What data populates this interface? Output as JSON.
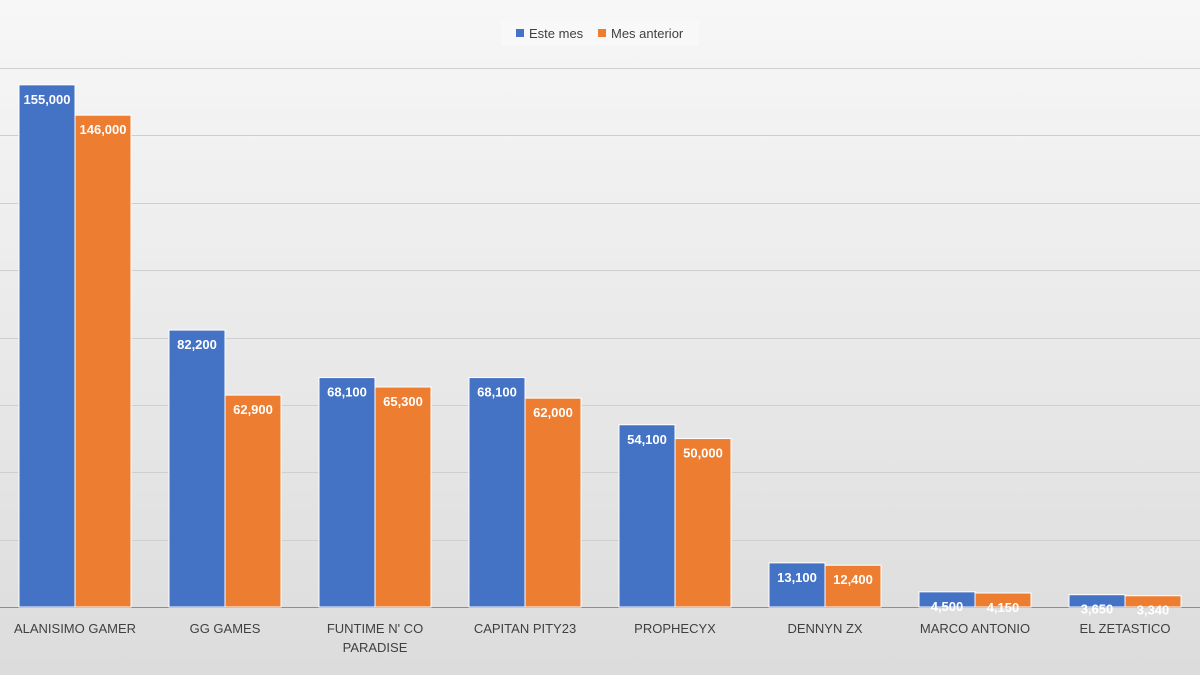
{
  "chart_data": {
    "type": "bar",
    "categories": [
      "ALANISIMO GAMER",
      "GG GAMES",
      "FUNTIME N' CO PARADISE",
      "CAPITAN PITY23",
      "PROPHECYX",
      "DENNYN ZX",
      "MARCO ANTONIO",
      "EL ZETASTICO"
    ],
    "category_lines": [
      [
        "ALANISIMO GAMER"
      ],
      [
        "GG GAMES"
      ],
      [
        "FUNTIME N' CO",
        "PARADISE"
      ],
      [
        "CAPITAN PITY23"
      ],
      [
        "PROPHECYX"
      ],
      [
        "DENNYN ZX"
      ],
      [
        "MARCO ANTONIO"
      ],
      [
        "EL ZETASTICO"
      ]
    ],
    "series": [
      {
        "name": "Este mes",
        "color": "#4472C4",
        "values": [
          155000,
          82200,
          68100,
          68100,
          54100,
          13100,
          4500,
          3650
        ],
        "labels": [
          "155,000",
          "82,200",
          "68,100",
          "68,100",
          "54,100",
          "13,100",
          "4,500",
          "3,650"
        ]
      },
      {
        "name": "Mes anterior",
        "color": "#ED7D31",
        "values": [
          146000,
          62900,
          65300,
          62000,
          50000,
          12400,
          4150,
          3340
        ],
        "labels": [
          "146,000",
          "62,900",
          "65,300",
          "62,000",
          "50,000",
          "12,400",
          "4,150",
          "3,340"
        ]
      }
    ],
    "ylim": [
      0,
      160000
    ],
    "grid": true,
    "legend": "top-center",
    "title": "",
    "xlabel": "",
    "ylabel": ""
  }
}
